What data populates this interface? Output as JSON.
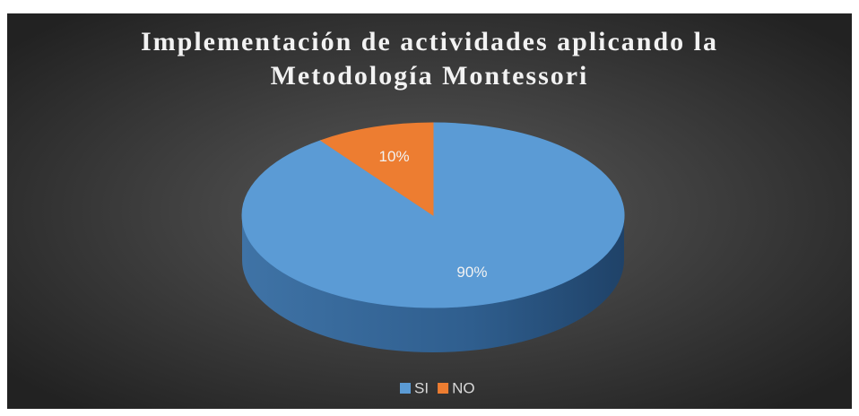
{
  "chart_data": {
    "type": "pie3d",
    "title": "Implementación de actividades aplicando la Metodología Montessori",
    "categories": [
      "SI",
      "NO"
    ],
    "values": [
      90,
      10
    ],
    "value_labels": [
      "90%",
      "10%"
    ],
    "colors": [
      "#5b9bd5",
      "#ed7d31"
    ],
    "legend": "bottom"
  }
}
